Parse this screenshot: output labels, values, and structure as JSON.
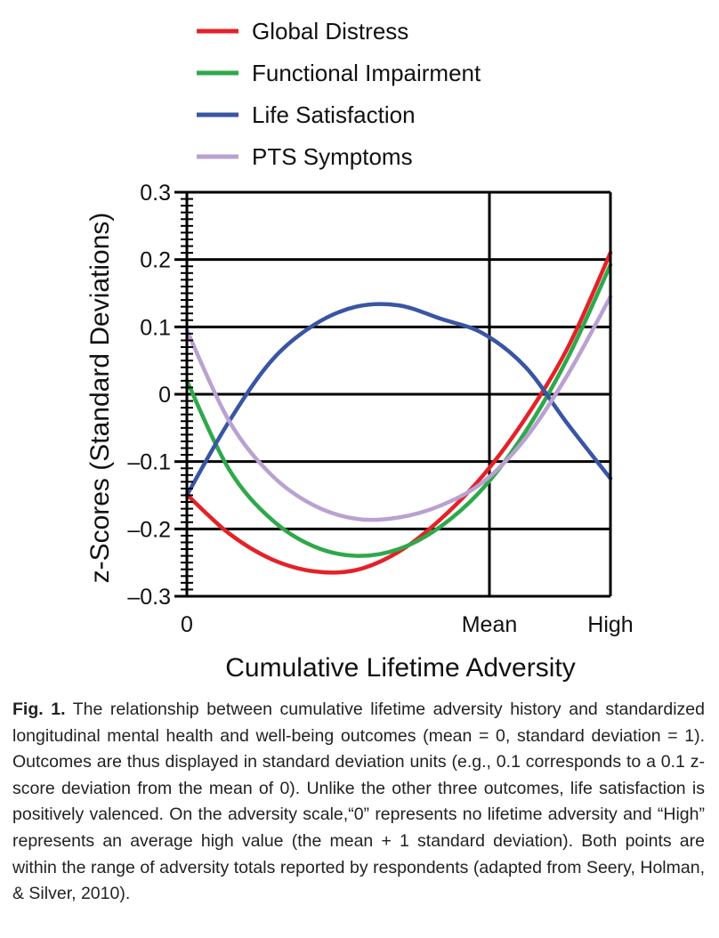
{
  "chart_data": {
    "type": "line",
    "xlabel": "Cumulative Lifetime Adversity",
    "ylabel": "z-Scores (Standard Deviations)",
    "x_ticks": [
      {
        "pos": 0,
        "label": "0"
      },
      {
        "pos": 1,
        "label": "Mean"
      },
      {
        "pos": 1.4,
        "label": "High"
      }
    ],
    "xlim": [
      0,
      1.4
    ],
    "ylim": [
      -0.3,
      0.3
    ],
    "y_ticks": [
      {
        "value": 0.3,
        "label": "0.3"
      },
      {
        "value": 0.2,
        "label": "0.2"
      },
      {
        "value": 0.1,
        "label": "0.1"
      },
      {
        "value": 0,
        "label": "0"
      },
      {
        "value": -0.1,
        "label": "–0.1"
      },
      {
        "value": -0.2,
        "label": "–0.2"
      },
      {
        "value": -0.3,
        "label": "–0.3"
      }
    ],
    "grid": true,
    "legend_position": "top",
    "series": [
      {
        "name": "Global Distress",
        "color": "#e32228",
        "x": [
          0,
          0.14,
          0.28,
          0.42,
          0.56,
          0.7,
          0.84,
          0.98,
          1.12,
          1.26,
          1.4
        ],
        "y": [
          -0.149,
          -0.207,
          -0.245,
          -0.263,
          -0.261,
          -0.234,
          -0.185,
          -0.12,
          -0.035,
          0.07,
          0.21
        ]
      },
      {
        "name": "Functional Impairment",
        "color": "#2fa84a",
        "x": [
          0,
          0.14,
          0.28,
          0.42,
          0.56,
          0.7,
          0.84,
          0.98,
          1.12,
          1.26,
          1.4
        ],
        "y": [
          0.02,
          -0.112,
          -0.186,
          -0.226,
          -0.24,
          -0.23,
          -0.196,
          -0.139,
          -0.055,
          0.055,
          0.192
        ]
      },
      {
        "name": "Life Satisfaction",
        "color": "#3955a3",
        "x": [
          0,
          0.14,
          0.28,
          0.42,
          0.56,
          0.7,
          0.84,
          0.98,
          1.12,
          1.26,
          1.4
        ],
        "y": [
          -0.15,
          -0.04,
          0.05,
          0.103,
          0.13,
          0.132,
          0.112,
          0.09,
          0.04,
          -0.045,
          -0.125
        ]
      },
      {
        "name": "PTS Symptoms",
        "color": "#b9a1d1",
        "x": [
          0,
          0.14,
          0.28,
          0.42,
          0.56,
          0.7,
          0.84,
          0.98,
          1.12,
          1.26,
          1.4
        ],
        "y": [
          0.095,
          -0.04,
          -0.12,
          -0.165,
          -0.185,
          -0.183,
          -0.165,
          -0.13,
          -0.065,
          0.03,
          0.145
        ]
      }
    ]
  },
  "caption": {
    "label": "Fig. 1.",
    "text": "The relationship between cumulative lifetime adversity history and standardized longitudinal mental health and well-being outcomes (mean = 0, standard deviation = 1). Outcomes are thus displayed in standard deviation units (e.g., 0.1 corresponds to a 0.1 z-score deviation from the mean of 0). Unlike the other three outcomes, life satisfaction is positively valenced. On the adversity scale,“0” represents no lifetime adversity and “High” represents an average high value (the mean + 1 standard deviation). Both points are within the range of adversity totals reported by respondents (adapted from Seery, Holman, & Silver, 2010)."
  }
}
